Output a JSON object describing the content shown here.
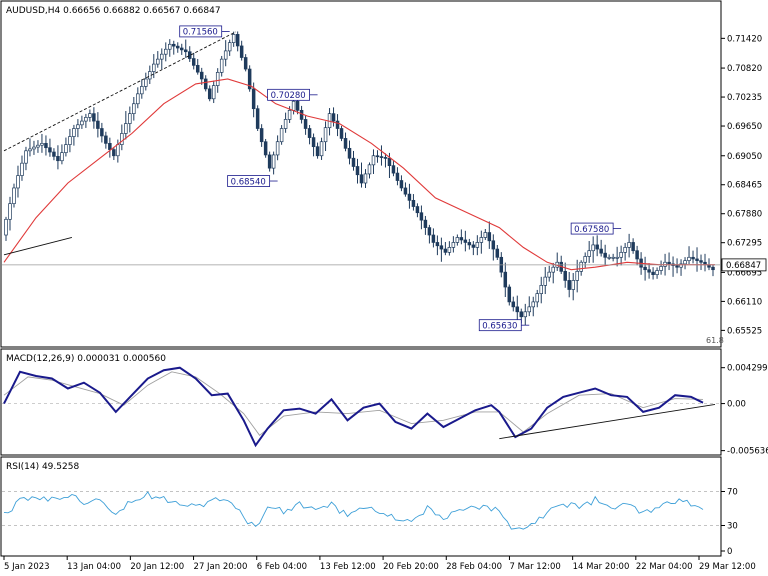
{
  "chart_data": {
    "type": "candlestick",
    "symbol_header": "AUDUSD,H4  0.66656 0.66882 0.66567 0.66847",
    "main": {
      "ylim": [
        0.6525,
        0.7175
      ],
      "yticks": [
        "0.71420",
        "0.70820",
        "0.70235",
        "0.69650",
        "0.69050",
        "0.68465",
        "0.67880",
        "0.67295",
        "0.66695",
        "0.66110",
        "0.65525"
      ],
      "current_price": "0.66847",
      "fib_label": "61.8",
      "grid": false,
      "price_path": [
        [
          0,
          0.6745
        ],
        [
          3,
          0.684
        ],
        [
          6,
          0.6915
        ],
        [
          10,
          0.693
        ],
        [
          14,
          0.6895
        ],
        [
          18,
          0.696
        ],
        [
          22,
          0.699
        ],
        [
          26,
          0.693
        ],
        [
          28,
          0.6905
        ],
        [
          30,
          0.695
        ],
        [
          34,
          0.703
        ],
        [
          38,
          0.709
        ],
        [
          42,
          0.713
        ],
        [
          46,
          0.7115
        ],
        [
          50,
          0.706
        ],
        [
          52,
          0.702
        ],
        [
          55,
          0.71
        ],
        [
          58,
          0.715
        ],
        [
          61,
          0.708
        ],
        [
          64,
          0.696
        ],
        [
          67,
          0.688
        ],
        [
          70,
          0.696
        ],
        [
          73,
          0.7015
        ],
        [
          76,
          0.696
        ],
        [
          79,
          0.6905
        ],
        [
          82,
          0.699
        ],
        [
          84,
          0.696
        ],
        [
          87,
          0.69
        ],
        [
          90,
          0.685
        ],
        [
          93,
          0.6905
        ],
        [
          96,
          0.69
        ],
        [
          100,
          0.684
        ],
        [
          104,
          0.679
        ],
        [
          108,
          0.673
        ],
        [
          111,
          0.671
        ],
        [
          114,
          0.674
        ],
        [
          118,
          0.672
        ],
        [
          121,
          0.675
        ],
        [
          124,
          0.67
        ],
        [
          127,
          0.661
        ],
        [
          130,
          0.658
        ],
        [
          133,
          0.661
        ],
        [
          136,
          0.666
        ],
        [
          139,
          0.669
        ],
        [
          142,
          0.6635
        ],
        [
          145,
          0.669
        ],
        [
          148,
          0.6725
        ],
        [
          151,
          0.67
        ],
        [
          154,
          0.67
        ],
        [
          157,
          0.673
        ],
        [
          160,
          0.668
        ],
        [
          163,
          0.6665
        ],
        [
          166,
          0.669
        ],
        [
          169,
          0.668
        ],
        [
          172,
          0.67
        ],
        [
          175,
          0.669
        ],
        [
          178,
          0.6675
        ]
      ],
      "moving_average_path": [
        [
          0,
          0.669
        ],
        [
          8,
          0.678
        ],
        [
          16,
          0.685
        ],
        [
          24,
          0.69
        ],
        [
          32,
          0.695
        ],
        [
          40,
          0.701
        ],
        [
          48,
          0.705
        ],
        [
          56,
          0.706
        ],
        [
          62,
          0.7045
        ],
        [
          68,
          0.701
        ],
        [
          76,
          0.6985
        ],
        [
          84,
          0.697
        ],
        [
          92,
          0.693
        ],
        [
          100,
          0.688
        ],
        [
          108,
          0.682
        ],
        [
          116,
          0.679
        ],
        [
          124,
          0.676
        ],
        [
          130,
          0.672
        ],
        [
          136,
          0.669
        ],
        [
          142,
          0.6675
        ],
        [
          148,
          0.668
        ],
        [
          156,
          0.669
        ],
        [
          164,
          0.6685
        ],
        [
          172,
          0.6685
        ],
        [
          178,
          0.6685
        ]
      ],
      "annotations": [
        {
          "label": "0.71560",
          "x": 55,
          "y": 0.7156
        },
        {
          "label": "0.68540",
          "x": 67,
          "y": 0.6854
        },
        {
          "label": "0.70280",
          "x": 77,
          "y": 0.7028
        },
        {
          "label": "0.65630",
          "x": 130,
          "y": 0.6563
        },
        {
          "label": "0.67580",
          "x": 153,
          "y": 0.6758
        }
      ]
    },
    "macd": {
      "label": "MACD(12,26,9) 0.000031 0.000560",
      "ylim": [
        -0.0058,
        0.0045
      ],
      "yticks": [
        "0.004299",
        "0.00",
        "-0.005636"
      ],
      "macd_path": [
        [
          0,
          0.0
        ],
        [
          4,
          0.0038
        ],
        [
          8,
          0.0033
        ],
        [
          12,
          0.003
        ],
        [
          16,
          0.0018
        ],
        [
          20,
          0.0025
        ],
        [
          24,
          0.0013
        ],
        [
          28,
          -0.001
        ],
        [
          32,
          0.001
        ],
        [
          36,
          0.003
        ],
        [
          40,
          0.004
        ],
        [
          44,
          0.0043
        ],
        [
          48,
          0.003
        ],
        [
          52,
          0.001
        ],
        [
          56,
          0.0012
        ],
        [
          60,
          -0.002
        ],
        [
          63,
          -0.005
        ],
        [
          66,
          -0.003
        ],
        [
          70,
          -0.0008
        ],
        [
          74,
          -0.0006
        ],
        [
          78,
          -0.0012
        ],
        [
          82,
          0.0005
        ],
        [
          86,
          -0.002
        ],
        [
          90,
          -0.0005
        ],
        [
          94,
          0.0
        ],
        [
          98,
          -0.0022
        ],
        [
          102,
          -0.003
        ],
        [
          106,
          -0.0012
        ],
        [
          110,
          -0.0028
        ],
        [
          114,
          -0.0018
        ],
        [
          118,
          -0.0008
        ],
        [
          122,
          -0.0002
        ],
        [
          124,
          -0.001
        ],
        [
          128,
          -0.004
        ],
        [
          132,
          -0.003
        ],
        [
          136,
          -0.0005
        ],
        [
          140,
          0.0008
        ],
        [
          144,
          0.0013
        ],
        [
          148,
          0.0018
        ],
        [
          152,
          0.001
        ],
        [
          156,
          0.0008
        ],
        [
          160,
          -0.001
        ],
        [
          164,
          -0.0005
        ],
        [
          168,
          0.001
        ],
        [
          172,
          0.0008
        ],
        [
          175,
          0.0001
        ]
      ],
      "signal_path": [
        [
          0,
          0.001
        ],
        [
          6,
          0.0032
        ],
        [
          12,
          0.0028
        ],
        [
          18,
          0.002
        ],
        [
          24,
          0.0012
        ],
        [
          30,
          -0.0002
        ],
        [
          36,
          0.0022
        ],
        [
          42,
          0.0038
        ],
        [
          48,
          0.0032
        ],
        [
          54,
          0.0012
        ],
        [
          60,
          -0.0012
        ],
        [
          64,
          -0.0038
        ],
        [
          70,
          -0.0015
        ],
        [
          78,
          -0.001
        ],
        [
          86,
          -0.0012
        ],
        [
          94,
          -0.0008
        ],
        [
          102,
          -0.0024
        ],
        [
          110,
          -0.002
        ],
        [
          118,
          -0.001
        ],
        [
          124,
          -0.001
        ],
        [
          130,
          -0.0034
        ],
        [
          136,
          -0.0012
        ],
        [
          144,
          0.001
        ],
        [
          152,
          0.0012
        ],
        [
          160,
          -0.0005
        ],
        [
          168,
          0.0006
        ],
        [
          175,
          0.0005
        ]
      ]
    },
    "rsi": {
      "label": "RSI(14) 49.5258",
      "ylim": [
        0,
        100
      ],
      "levels": [
        70,
        30
      ],
      "yticks": [
        "70",
        "30",
        "0"
      ],
      "path": [
        [
          0,
          42
        ],
        [
          4,
          58
        ],
        [
          8,
          64
        ],
        [
          12,
          60
        ],
        [
          16,
          66
        ],
        [
          20,
          58
        ],
        [
          24,
          64
        ],
        [
          28,
          44
        ],
        [
          32,
          60
        ],
        [
          36,
          66
        ],
        [
          40,
          62
        ],
        [
          44,
          58
        ],
        [
          48,
          52
        ],
        [
          52,
          60
        ],
        [
          56,
          58
        ],
        [
          60,
          40
        ],
        [
          63,
          28
        ],
        [
          66,
          52
        ],
        [
          70,
          46
        ],
        [
          74,
          56
        ],
        [
          78,
          48
        ],
        [
          82,
          54
        ],
        [
          86,
          42
        ],
        [
          90,
          52
        ],
        [
          94,
          46
        ],
        [
          98,
          38
        ],
        [
          102,
          36
        ],
        [
          106,
          50
        ],
        [
          110,
          38
        ],
        [
          114,
          46
        ],
        [
          118,
          52
        ],
        [
          122,
          50
        ],
        [
          124,
          46
        ],
        [
          128,
          24
        ],
        [
          132,
          32
        ],
        [
          136,
          46
        ],
        [
          140,
          56
        ],
        [
          144,
          52
        ],
        [
          148,
          60
        ],
        [
          152,
          50
        ],
        [
          156,
          54
        ],
        [
          160,
          44
        ],
        [
          164,
          50
        ],
        [
          168,
          58
        ],
        [
          172,
          56
        ],
        [
          175,
          49.5
        ]
      ]
    },
    "x_ticks": [
      "5 Jan 2023",
      "13 Jan 04:00",
      "20 Jan 12:00",
      "27 Jan 20:00",
      "6 Feb 04:00",
      "13 Feb 12:00",
      "20 Feb 20:00",
      "28 Feb 04:00",
      "7 Mar 12:00",
      "14 Mar 20:00",
      "22 Mar 04:00",
      "29 Mar 12:00"
    ],
    "x_range": [
      0,
      178
    ],
    "colors": {
      "candle": "#1f3b5c",
      "moving_average": "#e03a3a",
      "macd": "#1a1a8c",
      "signal": "#a0a0a0",
      "rsi": "#3fa0d8",
      "label_border": "#1a1a8c",
      "label_text": "#1a1a8c",
      "trend": "#111111"
    }
  }
}
